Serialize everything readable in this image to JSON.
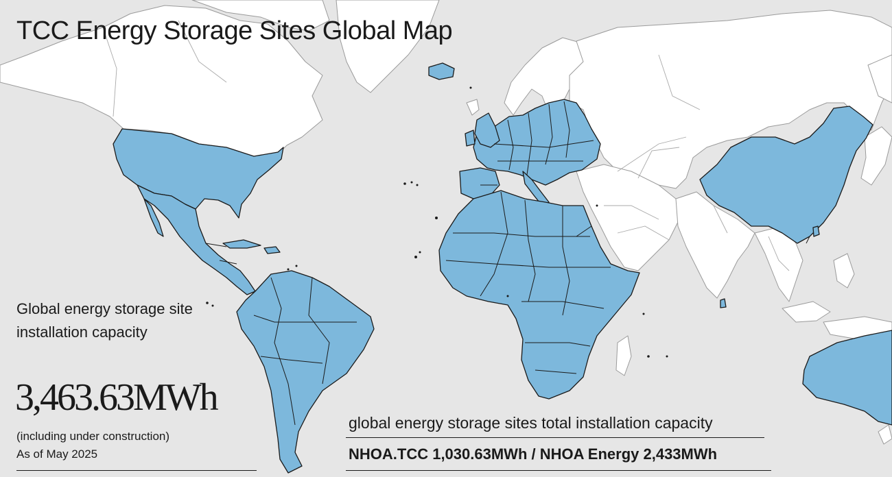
{
  "title": "TCC Energy Storage Sites Global Map",
  "summary": {
    "label": "Global energy storage site installation capacity",
    "value": "3,463.63MWh",
    "note_line1": "(including under construction)",
    "note_line2": "As of May 2025"
  },
  "totals": {
    "label": "global  energy storage sites total installation capacity",
    "value": "NHOA.TCC 1,030.63MWh / NHOA Energy 2,433MWh"
  },
  "map": {
    "highlight_color": "#7db8dc",
    "land_color": "#ffffff",
    "ocean_color": "#e6e6e6",
    "highlighted_regions": [
      "United States",
      "Mexico",
      "Central America",
      "South America",
      "Europe",
      "Africa",
      "China",
      "Australia"
    ]
  }
}
